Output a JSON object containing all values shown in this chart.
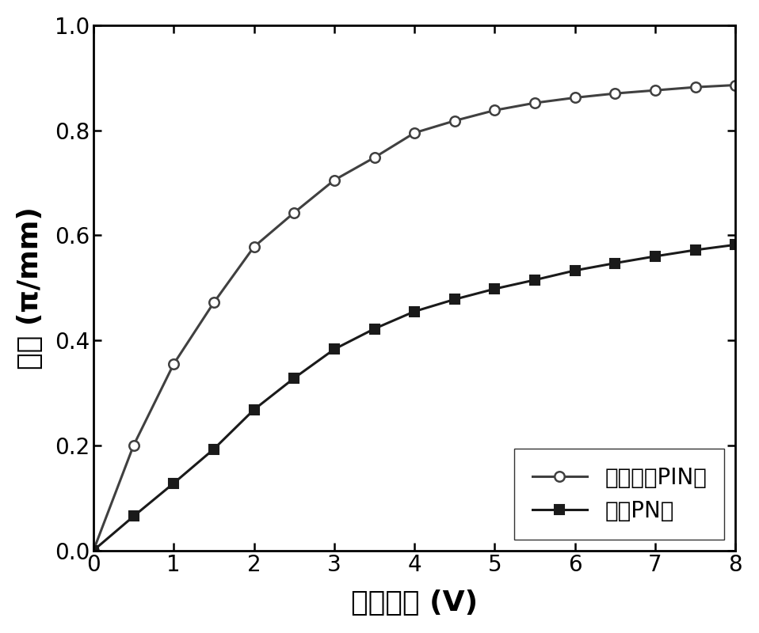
{
  "xlabel": "反向偏压 (V)",
  "ylabel": "相移 (π/mm)",
  "xlim": [
    0,
    8
  ],
  "ylim": [
    0,
    1
  ],
  "xticks": [
    0,
    1,
    2,
    3,
    4,
    5,
    6,
    7,
    8
  ],
  "yticks": [
    0,
    0.2,
    0.4,
    0.6,
    0.8,
    1.0
  ],
  "line1_label": "插指型准PIN结",
  "line2_label": "传统PN结",
  "line1_color": "#404040",
  "line2_color": "#1a1a1a",
  "line1_x": [
    0,
    0.5,
    1.0,
    1.5,
    2.0,
    2.5,
    3.0,
    3.5,
    4.0,
    4.5,
    5.0,
    5.5,
    6.0,
    6.5,
    7.0,
    7.5,
    8.0
  ],
  "line1_y": [
    0,
    0.2,
    0.355,
    0.472,
    0.578,
    0.643,
    0.705,
    0.748,
    0.795,
    0.818,
    0.838,
    0.852,
    0.862,
    0.87,
    0.876,
    0.882,
    0.886
  ],
  "line2_x": [
    0,
    0.5,
    1.0,
    1.5,
    2.0,
    2.5,
    3.0,
    3.5,
    4.0,
    4.5,
    5.0,
    5.5,
    6.0,
    6.5,
    7.0,
    7.5,
    8.0
  ],
  "line2_y": [
    0,
    0.065,
    0.128,
    0.193,
    0.268,
    0.328,
    0.383,
    0.422,
    0.455,
    0.478,
    0.498,
    0.515,
    0.533,
    0.547,
    0.56,
    0.572,
    0.582
  ],
  "marker1": "o",
  "marker2": "s",
  "markersize1": 9,
  "markersize2": 8,
  "linewidth": 2.2,
  "legend_loc": "lower right",
  "legend_fontsize": 20,
  "axis_label_fontsize": 26,
  "tick_fontsize": 20,
  "background_color": "#ffffff"
}
